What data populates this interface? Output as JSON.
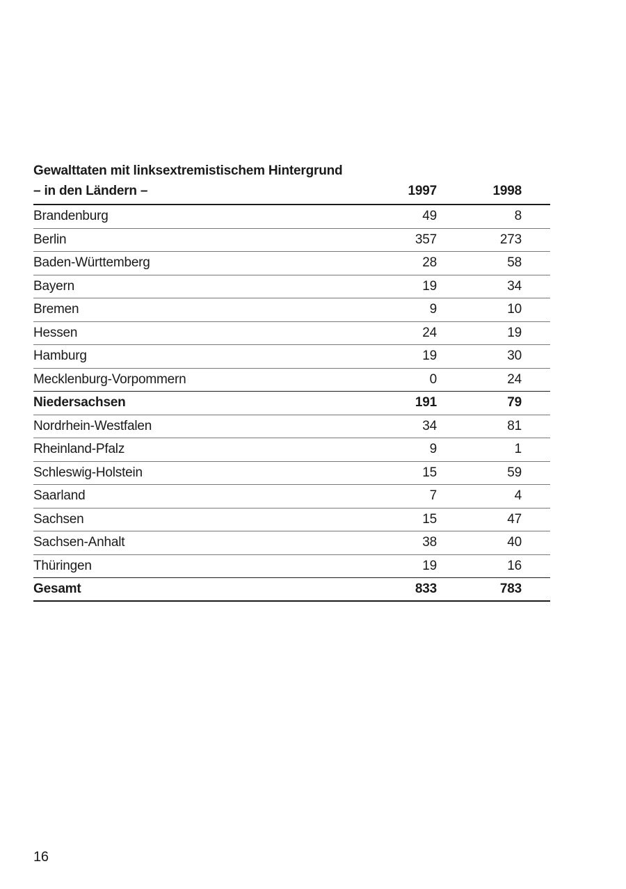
{
  "page": {
    "number": "16"
  },
  "table": {
    "title": "Gewalttaten mit linksextremistischem Hintergrund",
    "subtitle": "– in den Ländern –",
    "col_headers": [
      "1997",
      "1998"
    ],
    "rows": [
      {
        "label": "Brandenburg",
        "y1997": "49",
        "y1998": "8",
        "bold": false
      },
      {
        "label": "Berlin",
        "y1997": "357",
        "y1998": "273",
        "bold": false
      },
      {
        "label": "Baden-Württemberg",
        "y1997": "28",
        "y1998": "58",
        "bold": false
      },
      {
        "label": "Bayern",
        "y1997": "19",
        "y1998": "34",
        "bold": false
      },
      {
        "label": "Bremen",
        "y1997": "9",
        "y1998": "10",
        "bold": false
      },
      {
        "label": "Hessen",
        "y1997": "24",
        "y1998": "19",
        "bold": false
      },
      {
        "label": "Hamburg",
        "y1997": "19",
        "y1998": "30",
        "bold": false
      },
      {
        "label": "Mecklenburg-Vorpommern",
        "y1997": "0",
        "y1998": "24",
        "bold": false
      },
      {
        "label": "Niedersachsen",
        "y1997": "191",
        "y1998": "79",
        "bold": true
      },
      {
        "label": "Nordrhein-Westfalen",
        "y1997": "34",
        "y1998": "81",
        "bold": false
      },
      {
        "label": "Rheinland-Pfalz",
        "y1997": "9",
        "y1998": "1",
        "bold": false
      },
      {
        "label": "Schleswig-Holstein",
        "y1997": "15",
        "y1998": "59",
        "bold": false
      },
      {
        "label": "Saarland",
        "y1997": "7",
        "y1998": "4",
        "bold": false
      },
      {
        "label": "Sachsen",
        "y1997": "15",
        "y1998": "47",
        "bold": false
      },
      {
        "label": "Sachsen-Anhalt",
        "y1997": "38",
        "y1998": "40",
        "bold": false
      },
      {
        "label": "Thüringen",
        "y1997": "19",
        "y1998": "16",
        "bold": false
      },
      {
        "label": "Gesamt",
        "y1997": "833",
        "y1998": "783",
        "bold": true
      }
    ]
  },
  "colors": {
    "text": "#1a1a1a",
    "rule_strong": "#1a1a1a",
    "rule_light": "#787878"
  }
}
